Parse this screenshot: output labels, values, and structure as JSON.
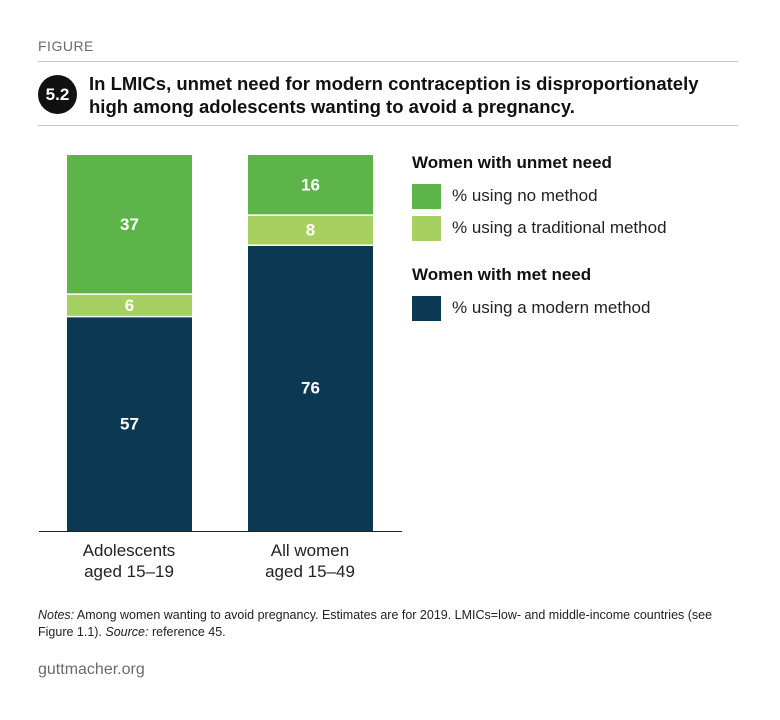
{
  "header": {
    "figure_label": "FIGURE",
    "badge": "5.2",
    "title": "In LMICs, unmet need for modern contraception is disproportionately high among adolescents wanting to avoid a pregnancy."
  },
  "legend": {
    "unmet_heading": "Women with unmet need",
    "met_heading": "Women with met need",
    "items": [
      {
        "label": "% using no method",
        "color": "#5db448"
      },
      {
        "label": "% using a traditional method",
        "color": "#a6d160"
      },
      {
        "label": "% using a modern method",
        "color": "#0b3954"
      }
    ]
  },
  "notes": {
    "notes_label": "Notes:",
    "notes_text": " Among women wanting to avoid pregnancy. Estimates are for 2019. LMICs=low- and middle-income countries (see Figure 1.1). ",
    "source_label": "Source:",
    "source_text": " reference 45."
  },
  "footer": {
    "site": "guttmacher.org"
  },
  "chart_data": {
    "type": "bar",
    "stacked": true,
    "categories": [
      "Adolescents\naged 15–19",
      "All women\naged 15–49"
    ],
    "series": [
      {
        "name": "% using a modern method",
        "values": [
          57,
          76
        ],
        "color": "#0b3954",
        "label_color": "#ffffff"
      },
      {
        "name": "% using a traditional method",
        "values": [
          6,
          8
        ],
        "color": "#a6d160",
        "label_color": "#ffffff"
      },
      {
        "name": "% using no method",
        "values": [
          37,
          16
        ],
        "color": "#5db448",
        "label_color": "#ffffff"
      }
    ],
    "ylim": [
      0,
      100
    ],
    "legend": "right",
    "grid": false
  }
}
